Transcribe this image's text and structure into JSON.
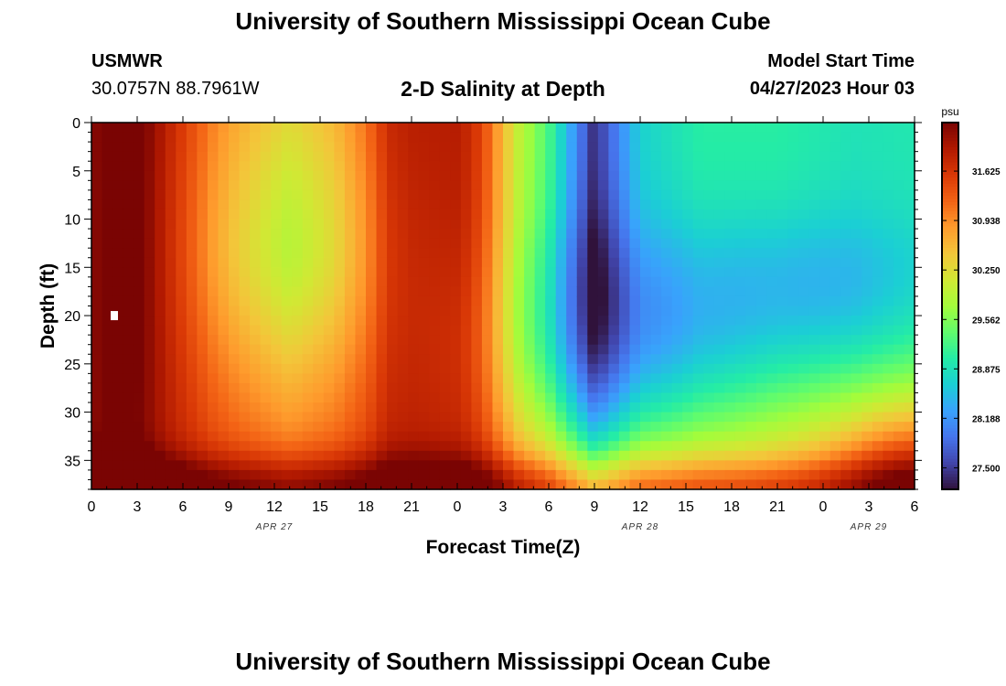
{
  "header": {
    "title": "University of Southern Mississippi Ocean Cube",
    "station_name": "USMWR",
    "station_coords": "30.0757N  88.7961W",
    "plot_title": "2-D Salinity at Depth",
    "model_start_label": "Model Start Time",
    "model_start_value": "04/27/2023 Hour 03"
  },
  "footer": {
    "title": "University of Southern Mississippi Ocean Cube"
  },
  "chart_data": {
    "type": "heatmap",
    "title": "2-D Salinity at Depth",
    "xlabel": "Forecast Time(Z)",
    "ylabel": "Depth (ft)",
    "x_range_hours": [
      0,
      54
    ],
    "x_tick_labels": [
      "0",
      "3",
      "6",
      "9",
      "12",
      "15",
      "18",
      "21",
      "0",
      "3",
      "6",
      "9",
      "12",
      "15",
      "18",
      "21",
      "0",
      "3",
      "6"
    ],
    "date_labels": [
      {
        "label": "APR 27",
        "hour": 12
      },
      {
        "label": "APR 28",
        "hour": 36
      },
      {
        "label": "APR 29",
        "hour": 51
      }
    ],
    "y_range": [
      0,
      38
    ],
    "y_ticks": [
      0,
      5,
      10,
      15,
      20,
      25,
      30,
      35
    ],
    "y_reversed": true,
    "colorbar": {
      "unit": "psu",
      "min": 27.2,
      "max": 32.3,
      "tick_labels": [
        "31.625",
        "30.938",
        "30.250",
        "29.562",
        "28.875",
        "28.188",
        "27.500"
      ],
      "tick_values": [
        31.625,
        30.938,
        30.25,
        29.562,
        28.875,
        28.188,
        27.5
      ]
    },
    "marker": {
      "hour": 1.5,
      "depth": 20
    },
    "surface_salinity_profile": [
      {
        "hour": 0,
        "value": 31.9
      },
      {
        "hour": 2,
        "value": 32.25
      },
      {
        "hour": 4,
        "value": 32.1
      },
      {
        "hour": 6,
        "value": 31.6
      },
      {
        "hour": 8,
        "value": 31.1
      },
      {
        "hour": 9.5,
        "value": 30.85
      },
      {
        "hour": 13,
        "value": 30.45
      },
      {
        "hour": 16,
        "value": 30.75
      },
      {
        "hour": 18,
        "value": 31.2
      },
      {
        "hour": 19.5,
        "value": 31.8
      },
      {
        "hour": 21,
        "value": 31.9
      },
      {
        "hour": 24,
        "value": 31.9
      },
      {
        "hour": 25,
        "value": 31.7
      },
      {
        "hour": 26,
        "value": 31.25
      },
      {
        "hour": 27,
        "value": 30.6
      },
      {
        "hour": 28,
        "value": 30.0
      },
      {
        "hour": 30,
        "value": 29.25
      },
      {
        "hour": 33,
        "value": 27.4
      },
      {
        "hour": 36,
        "value": 28.7
      },
      {
        "hour": 40,
        "value": 29.05
      },
      {
        "hour": 45,
        "value": 29.05
      },
      {
        "hour": 50,
        "value": 28.9
      },
      {
        "hour": 54,
        "value": 28.95
      }
    ],
    "colors": {
      "scale": [
        "#30123b",
        "#4145ab",
        "#4675ed",
        "#39a2fc",
        "#1bcfd4",
        "#24eca6",
        "#61fc6c",
        "#a4fc3b",
        "#d1e834",
        "#f3c63a",
        "#fe9b2d",
        "#f36315",
        "#d93806",
        "#b11901",
        "#7a0403"
      ]
    }
  }
}
